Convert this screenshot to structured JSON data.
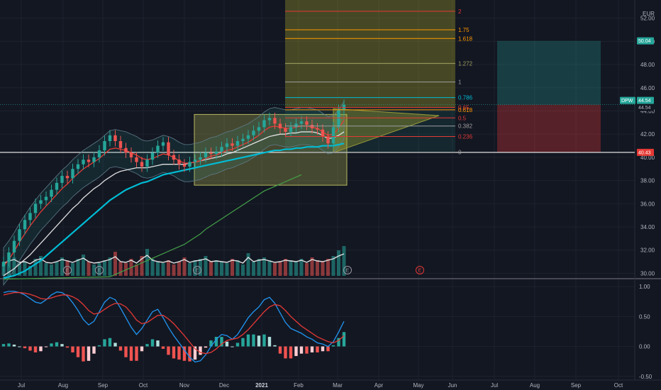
{
  "chart_data": [
    {
      "type": "line",
      "pane": "price",
      "currency": "EUR",
      "ticker": "DPW",
      "y_ticks": [
        "52.00",
        "50.00",
        "48.00",
        "46.00",
        "44.00",
        "42.00",
        "40.00",
        "38.00",
        "36.00",
        "34.00",
        "32.00",
        "30.00"
      ],
      "ylim": [
        29.6,
        53.2
      ],
      "x_ticks": [
        "Jul",
        "Aug",
        "Sep",
        "Oct",
        "Nov",
        "Dec",
        "2021",
        "Feb",
        "Mar",
        "Apr",
        "May",
        "Jun",
        "Jul",
        "Aug",
        "Sep",
        "Oct"
      ],
      "series": [
        {
          "name": "DPW",
          "color": "#26a69a",
          "values": [
            31.0,
            31.8,
            32.8,
            33.8,
            34.6,
            35.2,
            36.0,
            36.3,
            36.6,
            37.2,
            37.8,
            38.4,
            38.2,
            39.0,
            39.4,
            39.8,
            39.6,
            40.0,
            40.6,
            41.4,
            41.9,
            41.4,
            40.8,
            40.4,
            40.0,
            39.6,
            39.2,
            39.8,
            40.4,
            41.0,
            41.3,
            40.2,
            39.8,
            39.4,
            39.2,
            39.6,
            39.8,
            40.0,
            40.4,
            40.3,
            40.5,
            40.9,
            41.2,
            41.0,
            41.4,
            41.6,
            41.9,
            42.3,
            42.6,
            43.2,
            43.4,
            42.9,
            42.5,
            42.2,
            42.6,
            42.9,
            43.1,
            42.8,
            42.5,
            42.4,
            41.8,
            41.2,
            42.6,
            44.1,
            44.54
          ]
        },
        {
          "name": "",
          "color": "#00bcd4",
          "role": "moving average",
          "values": [
            29.6,
            29.7,
            29.8,
            30.0,
            30.2,
            30.5,
            30.8,
            31.1,
            31.5,
            31.9,
            32.3,
            32.7,
            33.1,
            33.5,
            33.9,
            34.3,
            34.7,
            35.1,
            35.5,
            35.9,
            36.3,
            36.6,
            36.9,
            37.2,
            37.4,
            37.6,
            37.8,
            37.9,
            38.1,
            38.3,
            38.5,
            38.6,
            38.7,
            38.8,
            38.9,
            39.0,
            39.1,
            39.2,
            39.3,
            39.4,
            39.5,
            39.6,
            39.7,
            39.8,
            39.9,
            40.0,
            40.1,
            40.2,
            40.3,
            40.4,
            40.5,
            40.6,
            40.6,
            40.7,
            40.7,
            40.8,
            40.8,
            40.9,
            40.9,
            40.9,
            41.0,
            41.0,
            41.0,
            41.1,
            41.2
          ]
        },
        {
          "name": "",
          "color": "#e0e0e0",
          "role": "moving average",
          "values": [
            29.8,
            30.1,
            30.4,
            30.8,
            31.2,
            31.6,
            32.1,
            32.6,
            33.1,
            33.6,
            34.1,
            34.6,
            35.1,
            35.6,
            36.0,
            36.5,
            36.9,
            37.3,
            37.6,
            38.0,
            38.3,
            38.6,
            38.8,
            38.9,
            39.0,
            39.1,
            39.1,
            39.1,
            39.2,
            39.3,
            39.4,
            39.4,
            39.4,
            39.4,
            39.4,
            39.5,
            39.6,
            39.7,
            39.8,
            39.9,
            40.0,
            40.1,
            40.3,
            40.4,
            40.6,
            40.8,
            41.0,
            41.2,
            41.4,
            41.6,
            41.8,
            41.9,
            42.0,
            42.0,
            42.1,
            42.1,
            42.2,
            42.2,
            42.2,
            42.1,
            41.9,
            41.6,
            41.7,
            41.9,
            42.2
          ]
        },
        {
          "name": "",
          "color": "#e53935",
          "role": "moving average",
          "values": [
            30.6,
            31.2,
            31.9,
            32.7,
            33.4,
            34.1,
            34.7,
            35.3,
            35.8,
            36.3,
            36.8,
            37.3,
            37.7,
            38.2,
            38.6,
            39.0,
            39.3,
            39.6,
            39.9,
            40.3,
            40.7,
            40.8,
            40.7,
            40.6,
            40.4,
            40.2,
            39.9,
            39.8,
            39.9,
            40.1,
            40.3,
            40.2,
            40.0,
            39.7,
            39.5,
            39.5,
            39.6,
            39.7,
            39.9,
            40.1,
            40.2,
            40.4,
            40.6,
            40.7,
            40.9,
            41.1,
            41.3,
            41.6,
            41.9,
            42.3,
            42.6,
            42.7,
            42.6,
            42.5,
            42.5,
            42.6,
            42.7,
            42.7,
            42.6,
            42.5,
            42.2,
            41.9,
            42.0,
            42.5,
            43.2
          ]
        },
        {
          "name": "",
          "color": "#43a047",
          "role": "moving average",
          "values": [
            29.5,
            null,
            null,
            null,
            null,
            null,
            null,
            null,
            null,
            null,
            null,
            null,
            null,
            null,
            null,
            null,
            null,
            null,
            null,
            null,
            29.7,
            29.9,
            30.1,
            30.3,
            30.5,
            30.7,
            30.9,
            31.1,
            31.3,
            31.5,
            31.7,
            31.9,
            32.1,
            32.3,
            32.5,
            32.8,
            33.1,
            33.4,
            33.8,
            34.1,
            34.4,
            34.7,
            35.0,
            35.3,
            35.6,
            35.9,
            36.2,
            36.5,
            36.8,
            37.1,
            37.3,
            37.5,
            37.7,
            37.9,
            38.1,
            38.3,
            38.5
          ]
        }
      ],
      "levels": [
        {
          "label": "2",
          "value": 52.6,
          "color": "#e53935"
        },
        {
          "label": "1.75",
          "value": 51.0,
          "color": "#ff9800"
        },
        {
          "label": "1.618",
          "value": 50.25,
          "color": "#ff9800"
        },
        {
          "label": "1.272",
          "value": 48.1,
          "color": "#a0a060"
        },
        {
          "label": "1",
          "value": 46.5,
          "color": "#9e9e9e"
        },
        {
          "label": "0.786",
          "value": 45.15,
          "color": "#00bcd4"
        },
        {
          "label": "0.65",
          "value": 44.3,
          "color": "#e53935"
        },
        {
          "label": "0.618",
          "value": 44.1,
          "color": "#ff9800"
        },
        {
          "label": "0.5",
          "value": 43.4,
          "color": "#e53935"
        },
        {
          "label": "0.382",
          "value": 42.7,
          "color": "#9e9e9e"
        },
        {
          "label": "0.236",
          "value": 41.8,
          "color": "#e53935"
        },
        {
          "label": "0",
          "value": 40.45,
          "color": "#9e9e9e"
        }
      ],
      "price_tags": [
        {
          "label": "50.04",
          "value": 50.04,
          "color": "#26a69a"
        },
        {
          "label": "44.54",
          "value": 44.54,
          "color": "#26a69a"
        },
        {
          "label": "44.54",
          "value": 44.54,
          "color": "#131722"
        },
        {
          "label": "40.43",
          "value": 40.43,
          "color": "#e53935"
        }
      ],
      "dpw_tag": {
        "label": "DPW",
        "value_text": "44.54"
      },
      "earnings_markers": [
        "E",
        "E",
        "E",
        "E",
        "E"
      ],
      "volume": [
        8,
        11,
        13,
        9,
        10,
        7,
        12,
        14,
        9,
        8,
        10,
        13,
        11,
        9,
        12,
        15,
        10,
        8,
        9,
        11,
        13,
        17,
        10,
        9,
        12,
        8,
        14,
        19,
        12,
        10,
        9,
        11,
        8,
        10,
        13,
        9,
        11,
        12,
        14,
        10,
        11,
        10,
        9,
        12,
        11,
        8,
        16,
        10,
        12,
        13,
        11,
        9,
        10,
        12,
        11,
        10,
        12,
        9,
        13,
        11,
        10,
        12,
        14,
        18,
        21
      ]
    },
    {
      "type": "bar",
      "pane": "oscillator",
      "y_ticks": [
        "1.00",
        "0.50",
        "0.00",
        "-0.50"
      ],
      "ylim": [
        -0.55,
        1.12
      ],
      "series": [
        {
          "name": "",
          "color": "#2196f3",
          "role": "MACD",
          "values": [
            0.9,
            0.92,
            0.92,
            0.9,
            0.86,
            0.8,
            0.74,
            0.72,
            0.78,
            0.86,
            0.91,
            0.9,
            0.84,
            0.73,
            0.6,
            0.45,
            0.36,
            0.42,
            0.58,
            0.74,
            0.82,
            0.78,
            0.64,
            0.48,
            0.32,
            0.2,
            0.3,
            0.44,
            0.58,
            0.62,
            0.48,
            0.32,
            0.18,
            0.06,
            -0.06,
            -0.18,
            -0.26,
            -0.24,
            -0.14,
            0.0,
            0.12,
            0.2,
            0.18,
            0.12,
            0.2,
            0.34,
            0.48,
            0.58,
            0.66,
            0.78,
            0.82,
            0.72,
            0.56,
            0.4,
            0.3,
            0.26,
            0.22,
            0.16,
            0.12,
            0.06,
            0.04,
            0.0,
            0.08,
            0.24,
            0.42
          ]
        },
        {
          "name": "",
          "color": "#e53935",
          "role": "signal",
          "values": [
            0.86,
            0.88,
            0.9,
            0.9,
            0.89,
            0.87,
            0.84,
            0.8,
            0.79,
            0.81,
            0.84,
            0.86,
            0.86,
            0.83,
            0.78,
            0.7,
            0.6,
            0.54,
            0.56,
            0.62,
            0.68,
            0.72,
            0.71,
            0.66,
            0.56,
            0.44,
            0.38,
            0.4,
            0.46,
            0.52,
            0.52,
            0.46,
            0.38,
            0.28,
            0.18,
            0.07,
            -0.04,
            -0.1,
            -0.12,
            -0.1,
            -0.04,
            0.04,
            0.1,
            0.12,
            0.14,
            0.2,
            0.28,
            0.38,
            0.48,
            0.58,
            0.66,
            0.7,
            0.68,
            0.6,
            0.5,
            0.42,
            0.34,
            0.28,
            0.22,
            0.16,
            0.12,
            0.08,
            0.06,
            0.1,
            0.18
          ]
        },
        {
          "name": "",
          "color": "#26a69a",
          "role": "histogram",
          "values": [
            0.04,
            0.05,
            0.03,
            0.0,
            -0.03,
            -0.07,
            -0.1,
            -0.08,
            -0.01,
            0.05,
            0.07,
            0.04,
            -0.02,
            -0.1,
            -0.18,
            -0.25,
            -0.24,
            -0.12,
            0.02,
            0.12,
            0.14,
            0.06,
            -0.07,
            -0.18,
            -0.24,
            -0.24,
            -0.08,
            0.04,
            0.12,
            0.1,
            -0.04,
            -0.14,
            -0.2,
            -0.22,
            -0.24,
            -0.25,
            -0.22,
            -0.14,
            -0.02,
            0.1,
            0.16,
            0.16,
            0.08,
            0.0,
            0.06,
            0.14,
            0.2,
            0.2,
            0.18,
            0.2,
            0.16,
            0.02,
            -0.12,
            -0.2,
            -0.2,
            -0.16,
            -0.12,
            -0.12,
            -0.1,
            -0.1,
            -0.08,
            -0.08,
            0.02,
            0.14,
            0.24
          ]
        }
      ]
    }
  ]
}
